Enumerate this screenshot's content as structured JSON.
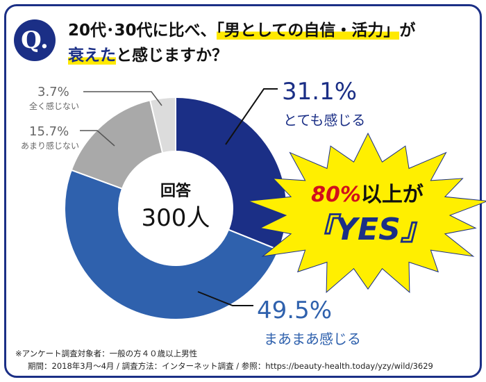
{
  "badge": "Q.",
  "title": {
    "line1_prefix": "20代･30代に比べ、",
    "line1_highlight": "「男としての自信・活力」",
    "line1_suffix": "が",
    "line2_highlight": "衰えた",
    "line2_suffix": "と感じますか？"
  },
  "center": {
    "label": "回答",
    "total": "300人"
  },
  "burst": {
    "line1_pct": "80%",
    "line1_rest": "以上が",
    "line2": "『YES』"
  },
  "colors": {
    "navy": "#1b2f86",
    "mid_blue": "#2f61ad",
    "gray": "#a9a9a9",
    "light_gray": "#dcdcdc",
    "yellow": "#ffef00",
    "red": "#d1101c"
  },
  "chart_data": {
    "type": "pie",
    "donut": true,
    "slices": [
      {
        "label": "とても感じる",
        "value": 31.1,
        "display": "31.1%",
        "color": "#1b2f86"
      },
      {
        "label": "まあまあ感じる",
        "value": 49.5,
        "display": "49.5%",
        "color": "#2f61ad"
      },
      {
        "label": "あまり感じない",
        "value": 15.7,
        "display": "15.7%",
        "color": "#a9a9a9"
      },
      {
        "label": "全く感じない",
        "value": 3.7,
        "display": "3.7%",
        "color": "#dcdcdc"
      }
    ]
  },
  "footer": {
    "line1": "※アンケート調査対象者：一般の方４０歳以上男性",
    "line2": "期間：2018年3月～4月 / 調査方法：インターネット調査 / 参照：https://beauty-health.today/yzy/wild/3629"
  }
}
